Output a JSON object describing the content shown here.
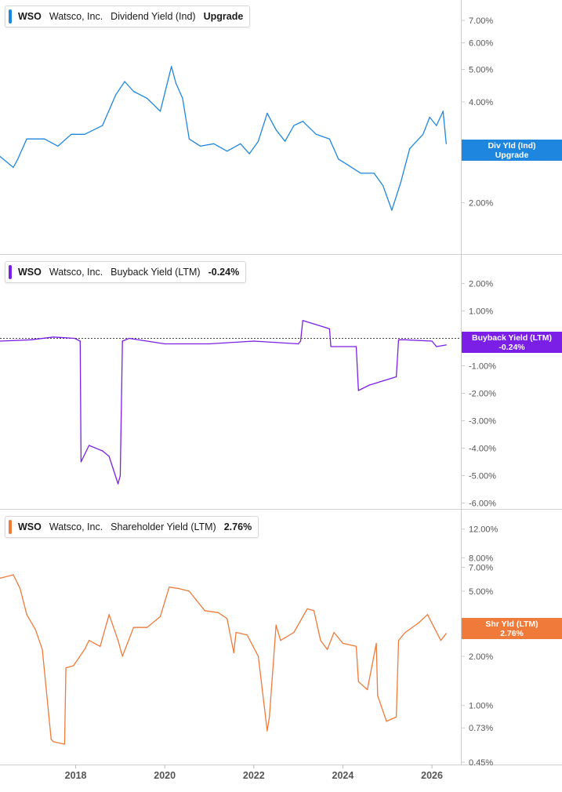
{
  "colors": {
    "dividend": "#1f86e0",
    "buyback": "#7b1fe6",
    "shareholder": "#f07a3a",
    "axis": "#cccccc",
    "tick_text": "#555555"
  },
  "x_axis": {
    "labels": [
      "2018",
      "2020",
      "2022",
      "2024",
      "2026"
    ],
    "range": [
      2016.3,
      2026.65
    ]
  },
  "panels": [
    {
      "id": "dividend",
      "ticker": "WSO",
      "company": "Watsco, Inc.",
      "metric": "Dividend Yield (Ind)",
      "value": "Upgrade",
      "tag_line1": "Div Yld (Ind)",
      "tag_line2": "Upgrade"
    },
    {
      "id": "buyback",
      "ticker": "WSO",
      "company": "Watsco, Inc.",
      "metric": "Buyback Yield (LTM)",
      "value": "-0.24%",
      "tag_line1": "Buyback Yield (LTM)",
      "tag_line2": "-0.24%"
    },
    {
      "id": "shareholder",
      "ticker": "WSO",
      "company": "Watsco, Inc.",
      "metric": "Shareholder Yield (LTM)",
      "value": "2.76%",
      "tag_line1": "Shr Yld (LTM)",
      "tag_line2": "2.76%"
    }
  ],
  "chart_data": [
    {
      "type": "line",
      "name": "WSO Dividend Yield (Ind)",
      "scale": "log",
      "ylim": [
        1.6,
        7.55
      ],
      "y_ticks": [
        "7.00%",
        "6.00%",
        "5.00%",
        "4.00%",
        "2.00%"
      ],
      "y_tick_values": [
        7,
        6,
        5,
        4,
        2
      ],
      "x": [
        2016.3,
        2016.6,
        2016.7,
        2016.9,
        2017.0,
        2017.3,
        2017.6,
        2017.9,
        2018.2,
        2018.6,
        2018.9,
        2019.1,
        2019.3,
        2019.6,
        2019.9,
        2020.15,
        2020.25,
        2020.4,
        2020.55,
        2020.8,
        2021.1,
        2021.4,
        2021.7,
        2021.9,
        2022.1,
        2022.3,
        2022.5,
        2022.7,
        2022.9,
        2023.1,
        2023.4,
        2023.7,
        2023.9,
        2024.1,
        2024.4,
        2024.7,
        2024.9,
        2025.1,
        2025.3,
        2025.5,
        2025.8,
        2025.95,
        2026.1,
        2026.25,
        2026.32
      ],
      "values": [
        2.75,
        2.55,
        2.7,
        3.1,
        3.1,
        3.1,
        2.95,
        3.2,
        3.2,
        3.4,
        4.2,
        4.6,
        4.3,
        4.1,
        3.75,
        5.1,
        4.55,
        4.1,
        3.1,
        2.95,
        3.0,
        2.85,
        3.0,
        2.8,
        3.05,
        3.7,
        3.3,
        3.05,
        3.4,
        3.5,
        3.2,
        3.1,
        2.7,
        2.6,
        2.45,
        2.45,
        2.25,
        1.9,
        2.3,
        2.9,
        3.2,
        3.6,
        3.4,
        3.75,
        3.0
      ],
      "current_tag": "Upgrade"
    },
    {
      "type": "line",
      "name": "WSO Buyback Yield (LTM)",
      "scale": "linear",
      "ylim": [
        -6.1,
        2.7
      ],
      "y_ticks": [
        "2.00%",
        "1.00%",
        "-1.00%",
        "-2.00%",
        "-3.00%",
        "-4.00%",
        "-5.00%",
        "-6.00%"
      ],
      "y_tick_values": [
        2,
        1,
        -1,
        -2,
        -3,
        -4,
        -5,
        -6
      ],
      "x": [
        2016.3,
        2017.0,
        2017.5,
        2017.98,
        2018.1,
        2018.12,
        2018.3,
        2018.6,
        2018.75,
        2018.95,
        2019.0,
        2019.05,
        2019.2,
        2020.0,
        2021.0,
        2022.0,
        2023.0,
        2023.05,
        2023.1,
        2023.7,
        2023.73,
        2024.3,
        2024.35,
        2024.6,
        2025.2,
        2025.25,
        2025.4,
        2026.0,
        2026.1,
        2026.32
      ],
      "values": [
        -0.1,
        -0.05,
        0.05,
        0.0,
        -0.1,
        -4.5,
        -3.9,
        -4.1,
        -4.3,
        -5.3,
        -5.0,
        -0.1,
        0.0,
        -0.2,
        -0.2,
        -0.1,
        -0.2,
        -0.1,
        0.65,
        0.35,
        -0.3,
        -0.3,
        -1.9,
        -1.7,
        -1.4,
        -0.05,
        -0.05,
        -0.1,
        -0.3,
        -0.24
      ],
      "current_value": -0.24
    },
    {
      "type": "line",
      "name": "WSO Shareholder Yield (LTM)",
      "scale": "log",
      "ylim": [
        0.45,
        13.5
      ],
      "y_ticks": [
        "12.00%",
        "8.00%",
        "7.00%",
        "5.00%",
        "2.00%",
        "1.00%",
        "0.73%",
        "0.45%"
      ],
      "y_tick_values": [
        12,
        8,
        7,
        5,
        2,
        1,
        0.73,
        0.45
      ],
      "x": [
        2016.3,
        2016.6,
        2016.75,
        2016.9,
        2017.1,
        2017.25,
        2017.45,
        2017.5,
        2017.75,
        2017.78,
        2017.95,
        2018.2,
        2018.3,
        2018.55,
        2018.75,
        2018.95,
        2019.05,
        2019.3,
        2019.6,
        2019.9,
        2020.1,
        2020.3,
        2020.55,
        2020.9,
        2021.2,
        2021.4,
        2021.55,
        2021.6,
        2021.85,
        2022.1,
        2022.3,
        2022.35,
        2022.5,
        2022.6,
        2022.9,
        2023.2,
        2023.35,
        2023.5,
        2023.65,
        2023.8,
        2024.0,
        2024.3,
        2024.35,
        2024.55,
        2024.75,
        2024.78,
        2024.98,
        2025.2,
        2025.25,
        2025.4,
        2025.7,
        2025.9,
        2026.05,
        2026.2,
        2026.32
      ],
      "values": [
        6.0,
        6.3,
        5.2,
        3.6,
        2.9,
        2.2,
        0.62,
        0.6,
        0.58,
        1.7,
        1.75,
        2.2,
        2.5,
        2.3,
        3.6,
        2.5,
        2.0,
        3.0,
        3.0,
        3.5,
        5.3,
        5.2,
        5.0,
        3.8,
        3.7,
        3.4,
        2.1,
        2.8,
        2.7,
        2.0,
        0.7,
        0.85,
        3.1,
        2.5,
        2.8,
        3.9,
        3.8,
        2.5,
        2.2,
        2.8,
        2.4,
        2.3,
        1.4,
        1.25,
        2.4,
        1.15,
        0.8,
        0.85,
        2.5,
        2.8,
        3.2,
        3.6,
        3.0,
        2.5,
        2.76
      ],
      "current_value": 2.76
    }
  ]
}
